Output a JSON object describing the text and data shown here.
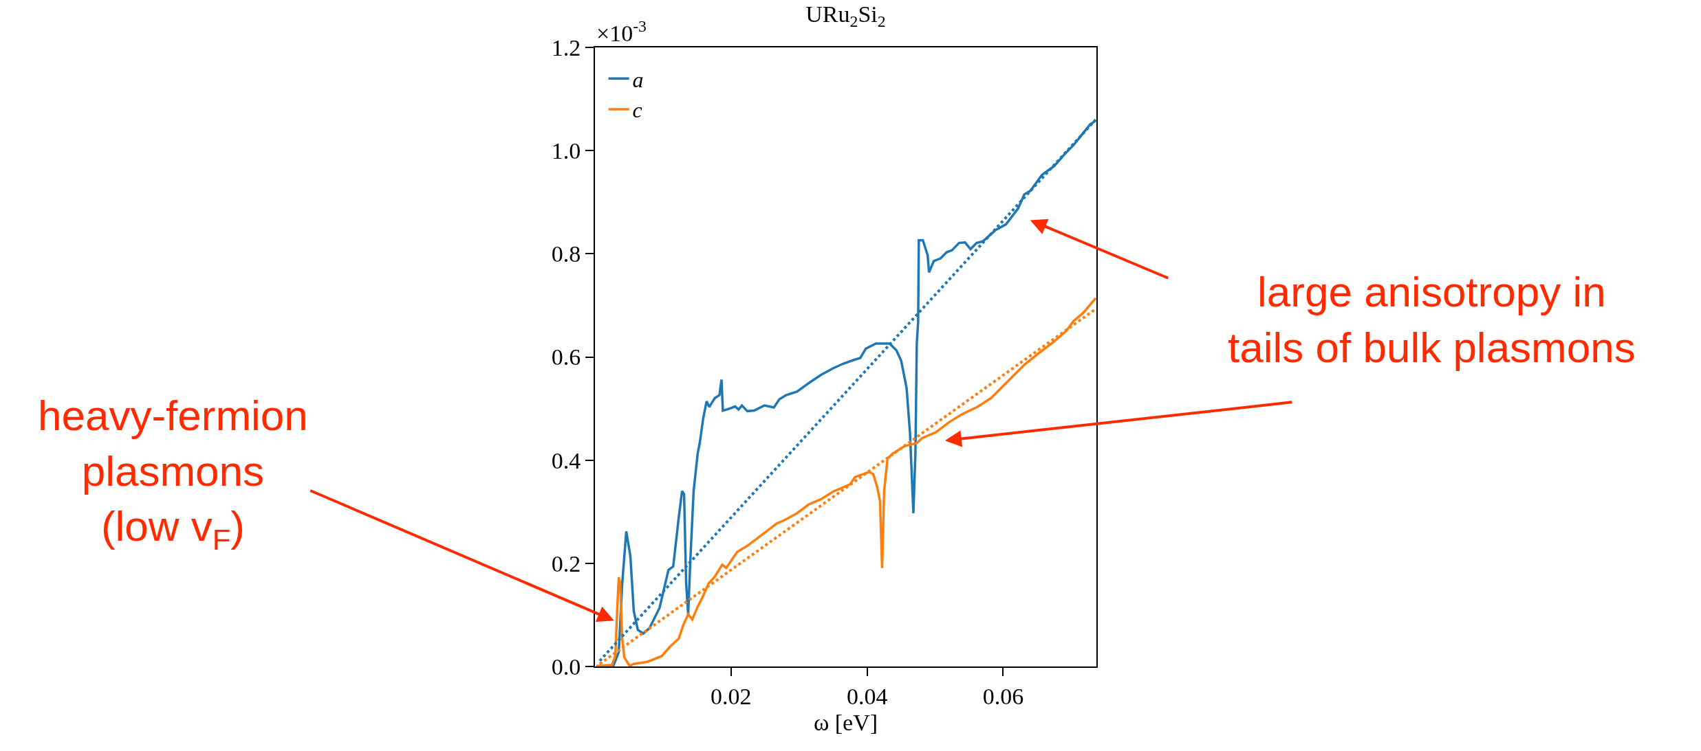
{
  "chart_data": {
    "type": "line",
    "title": "URu$_{2}$Si$_{2}$",
    "xlabel": "ω [eV]",
    "legend": "top left",
    "grid": false,
    "line_style": "solid",
    "marker": "none",
    "xlim": [
      0,
      0.0737
    ],
    "xticks": [
      0.02,
      0.04,
      0.06
    ],
    "ylim": [
      0,
      1.2
    ],
    "yticks": [
      {
        "value": 0,
        "label": "0.0"
      },
      0.2,
      0.4,
      0.6,
      0.8,
      {
        "value": 1,
        "label": "1.0"
      },
      1.2
    ],
    "annotations": [
      "×10$^{-3}$",
      "heavy-fermion\nplasmons\n(low v$_{F}$)",
      "large anisotropy in\ntails of bulk plasmons"
    ],
    "series": [
      {
        "name": "a",
        "color": "#1f77b4",
        "x": [
          0.0002,
          0.0027,
          0.0035,
          0.004,
          0.0046,
          0.0052,
          0.0057,
          0.0063,
          0.0071,
          0.008,
          0.0095,
          0.0108,
          0.0115,
          0.0123,
          0.0128,
          0.0131,
          0.0134,
          0.0137,
          0.014,
          0.0145,
          0.0151,
          0.0154,
          0.0159,
          0.0164,
          0.0168,
          0.0176,
          0.0183,
          0.0186,
          0.0188,
          0.0198,
          0.0206,
          0.0211,
          0.0216,
          0.0224,
          0.0234,
          0.0249,
          0.0263,
          0.0271,
          0.0281,
          0.0297,
          0.0314,
          0.0332,
          0.035,
          0.0365,
          0.038,
          0.039,
          0.0398,
          0.0413,
          0.0433,
          0.0443,
          0.045,
          0.0458,
          0.0463,
          0.0468,
          0.0471,
          0.0473,
          0.0475,
          0.0476,
          0.0482,
          0.0489,
          0.0491,
          0.0498,
          0.0508,
          0.0517,
          0.0525,
          0.0535,
          0.0544,
          0.0552,
          0.0561,
          0.057,
          0.0589,
          0.0604,
          0.0622,
          0.0631,
          0.064,
          0.0657,
          0.0675,
          0.0693,
          0.0703,
          0.0728,
          0.0736
        ],
        "values": [
          0,
          0.001,
          0.028,
          0.16,
          0.262,
          0.214,
          0.108,
          0.071,
          0.064,
          0.074,
          0.114,
          0.187,
          0.194,
          0.287,
          0.34,
          0.334,
          0.161,
          0.101,
          0.201,
          0.34,
          0.413,
          0.433,
          0.48,
          0.514,
          0.503,
          0.52,
          0.526,
          0.556,
          0.496,
          0.5,
          0.504,
          0.498,
          0.506,
          0.495,
          0.496,
          0.506,
          0.502,
          0.518,
          0.526,
          0.533,
          0.549,
          0.565,
          0.578,
          0.587,
          0.594,
          0.598,
          0.616,
          0.626,
          0.626,
          0.613,
          0.593,
          0.54,
          0.453,
          0.297,
          0.413,
          0.626,
          0.668,
          0.826,
          0.826,
          0.797,
          0.764,
          0.786,
          0.791,
          0.803,
          0.807,
          0.821,
          0.822,
          0.809,
          0.821,
          0.824,
          0.846,
          0.857,
          0.888,
          0.915,
          0.922,
          0.953,
          0.97,
          0.997,
          1.01,
          1.051,
          1.058
        ]
      },
      {
        "name": "c",
        "color": "#ff7f0e",
        "x": [
          0.0002,
          0.0025,
          0.003,
          0.0033,
          0.0035,
          0.0037,
          0.004,
          0.0043,
          0.0051,
          0.0057,
          0.0077,
          0.0098,
          0.011,
          0.0123,
          0.013,
          0.0137,
          0.0143,
          0.0151,
          0.0158,
          0.0167,
          0.0176,
          0.0187,
          0.0193,
          0.0209,
          0.0224,
          0.0236,
          0.0249,
          0.0267,
          0.0279,
          0.0297,
          0.0314,
          0.0332,
          0.035,
          0.0375,
          0.0382,
          0.0403,
          0.0409,
          0.0415,
          0.0419,
          0.0422,
          0.0425,
          0.043,
          0.0438,
          0.0455,
          0.0473,
          0.0481,
          0.0501,
          0.0521,
          0.0541,
          0.0562,
          0.0582,
          0.0607,
          0.0632,
          0.0652,
          0.0673,
          0.0693,
          0.0703,
          0.0718,
          0.0736
        ],
        "values": [
          0.001,
          0.003,
          0.021,
          0.121,
          0.173,
          0.161,
          0.054,
          0.018,
          0.001,
          0.005,
          0.009,
          0.02,
          0.038,
          0.054,
          0.081,
          0.101,
          0.091,
          0.116,
          0.134,
          0.161,
          0.174,
          0.197,
          0.191,
          0.222,
          0.234,
          0.246,
          0.259,
          0.277,
          0.284,
          0.297,
          0.314,
          0.324,
          0.339,
          0.353,
          0.367,
          0.377,
          0.373,
          0.347,
          0.32,
          0.191,
          0.34,
          0.403,
          0.413,
          0.427,
          0.433,
          0.443,
          0.454,
          0.474,
          0.49,
          0.503,
          0.52,
          0.553,
          0.586,
          0.607,
          0.628,
          0.651,
          0.669,
          0.686,
          0.714
        ]
      },
      {
        "type": "line",
        "line_style": "dotted",
        "color": "#1f77b4",
        "x": [
          0.0007,
          0.0736
        ],
        "values": [
          0.011,
          1.06
        ]
      },
      {
        "type": "line",
        "line_style": "dotted",
        "color": "#ff7f0e",
        "x": [
          0.0007,
          0.0736
        ],
        "values": [
          0.005,
          0.693
        ]
      }
    ]
  }
}
